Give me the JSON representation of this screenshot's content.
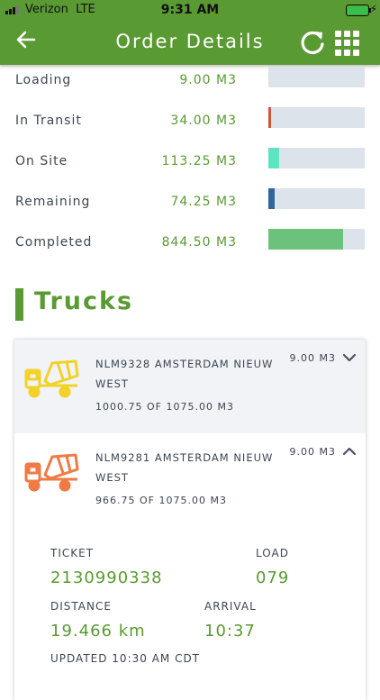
{
  "status_bar": {
    "carrier": "Verizon",
    "network": "LTE",
    "time": "9:31 AM",
    "battery_color": "#36c24a"
  },
  "header": {
    "title": "Order Details",
    "color": "#5a9a32"
  },
  "statuses": [
    {
      "label": "Loading",
      "value": "9.00 M3",
      "fill": 0.0,
      "color": "#dde3ea"
    },
    {
      "label": "In Transit",
      "value": "34.00 M3",
      "fill": 0.03,
      "color": "#d0563a"
    },
    {
      "label": "On Site",
      "value": "113.25 M3",
      "fill": 0.11,
      "color": "#5fe3c2"
    },
    {
      "label": "Remaining",
      "value": "74.25 M3",
      "fill": 0.07,
      "color": "#2f66a0"
    },
    {
      "label": "Completed",
      "value": "844.50 M3",
      "fill": 0.78,
      "color": "#6ac27b"
    }
  ],
  "trucks_section": {
    "title": "Trucks"
  },
  "trucks": [
    {
      "name": "NLM9328 AMSTERDAM NIEUW WEST",
      "quantity": "1000.75 OF 1075.00 M3",
      "load": "9.00 M3",
      "icon_color": "#f2d227",
      "icon": "truck-mixer-icon",
      "expanded": false
    },
    {
      "name": "NLM9281 AMSTERDAM NIEUW WEST",
      "quantity": "966.75 OF 1075.00 M3",
      "load": "9.00 M3",
      "icon_color": "#ef7a45",
      "icon": "truck-mixer-icon",
      "expanded": true
    }
  ],
  "truck_details": {
    "ticket_label": "TICKET",
    "ticket": "2130990338",
    "load_label": "LOAD",
    "load": "079",
    "distance_label": "DISTANCE",
    "distance": "19.466 km",
    "arrival_label": "ARRIVAL",
    "arrival": "10:37",
    "updated": "UPDATED 10:30 AM CDT"
  }
}
